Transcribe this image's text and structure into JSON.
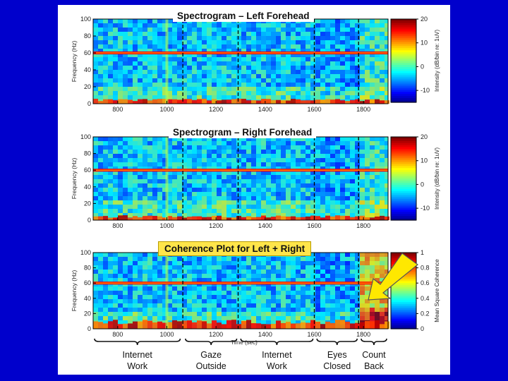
{
  "colors": {
    "slide_background": "#0000cc",
    "highlight_box": "#ffe54a",
    "arrow": "#ffe800",
    "power_line": "#ff0000"
  },
  "annotations": {
    "coherence_title": "Coherence Plot for Left + Right",
    "arrow_icon": "yellow-arrow-icon"
  },
  "chart_data": [
    {
      "type": "heatmap",
      "title": "Spectrogram – Left Forehead",
      "ylabel": "Frequency (Hz)",
      "xlabel": "",
      "xlim": [
        700,
        1900
      ],
      "ylim": [
        0,
        100
      ],
      "xticks": [
        "800",
        "1000",
        "1200",
        "1400",
        "1600",
        "1800"
      ],
      "yticks": [
        "0",
        "20",
        "40",
        "60",
        "80",
        "100"
      ],
      "colorbar": {
        "label": "Intensity (dB/bin re: 1uV)",
        "ticks": [
          "-10",
          "0",
          "10",
          "20"
        ],
        "range": [
          -15,
          20
        ]
      },
      "line_noise_hz": 60,
      "segment_boundaries": [
        1065,
        1290,
        1600,
        1780
      ],
      "hot_band_max_hz": 5
    },
    {
      "type": "heatmap",
      "title": "Spectrogram – Right Forehead",
      "ylabel": "Frequency (Hz)",
      "xlabel": "",
      "xlim": [
        700,
        1900
      ],
      "ylim": [
        0,
        100
      ],
      "xticks": [
        "800",
        "1000",
        "1200",
        "1400",
        "1600",
        "1800"
      ],
      "yticks": [
        "0",
        "20",
        "40",
        "60",
        "80",
        "100"
      ],
      "colorbar": {
        "label": "Intensity (dB/bin re: 1uV)",
        "ticks": [
          "-10",
          "0",
          "10",
          "20"
        ],
        "range": [
          -15,
          20
        ]
      },
      "line_noise_hz": 60,
      "segment_boundaries": [
        1065,
        1290,
        1600,
        1780
      ],
      "hot_band_max_hz": 5
    },
    {
      "type": "heatmap",
      "title": "",
      "ylabel": "Frequency (Hz)",
      "xlabel": "Time (sec)",
      "xlim": [
        700,
        1900
      ],
      "ylim": [
        0,
        100
      ],
      "xticks": [
        "800",
        "1000",
        "1200",
        "1400",
        "1600",
        "1800"
      ],
      "yticks": [
        "0",
        "20",
        "40",
        "60",
        "80",
        "100"
      ],
      "colorbar": {
        "label": "Mean Square Coherence",
        "ticks": [
          "0",
          "0.2",
          "0.4",
          "0.6",
          "0.8",
          "1"
        ],
        "range": [
          0,
          1
        ]
      },
      "line_noise_hz": 60,
      "segment_boundaries": [
        1065,
        1290,
        1600,
        1780
      ],
      "hot_band_max_hz": 10
    }
  ],
  "segments": [
    {
      "label_line1": "Internet",
      "label_line2": "Work",
      "start": 700,
      "end": 1060
    },
    {
      "label_line1": "Gaze",
      "label_line2": "Outside",
      "start": 1070,
      "end": 1290
    },
    {
      "label_line1": "Internet",
      "label_line2": "Work",
      "start": 1295,
      "end": 1600
    },
    {
      "label_line1": "Eyes",
      "label_line2": "Closed",
      "start": 1605,
      "end": 1780
    },
    {
      "label_line1": "Count",
      "label_line2": "Back",
      "start": 1785,
      "end": 1900
    }
  ]
}
